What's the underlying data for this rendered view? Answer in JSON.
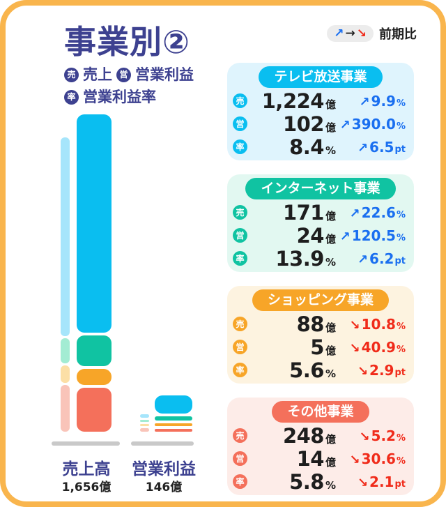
{
  "title": "事業別②",
  "legend": {
    "items": [
      {
        "badge": "売",
        "label": "売上"
      },
      {
        "badge": "営",
        "label": "営業利益"
      },
      {
        "badge": "率",
        "label": "営業利益率"
      }
    ]
  },
  "comparison_legend": {
    "up_arrow": "↗",
    "right_arrow": "→",
    "down_arrow": "↘",
    "label": "前期比"
  },
  "colors": {
    "frame_border": "#f9b54d",
    "navy": "#3d4190",
    "up_blue": "#1a6ff0",
    "down_red": "#f02b1a",
    "baseline_gray": "#c9c9c9",
    "segments": [
      "#0abef0",
      "#10c3a2",
      "#f7a528",
      "#f4705b"
    ],
    "segments_light": [
      "#a6e5fb",
      "#a3ecd3",
      "#fcdfa6",
      "#f9c4b9"
    ]
  },
  "chart_data": {
    "type": "bar",
    "subtype": "stacked, current period with lighter previous-period shadow bar",
    "unit": "億",
    "segment_names": [
      "テレビ放送事業",
      "インターネット事業",
      "ショッピング事業",
      "その他事業"
    ],
    "groups": [
      {
        "name": "売上高",
        "total": 1656,
        "total_label": "1,656億",
        "values": [
          1224,
          171,
          88,
          248
        ],
        "prev_values": [
          1114,
          140,
          99,
          262
        ]
      },
      {
        "name": "営業利益",
        "total": 146,
        "total_label": "146億",
        "values": [
          102,
          24,
          5,
          14
        ],
        "prev_values": [
          21,
          11,
          8,
          20
        ]
      }
    ]
  },
  "cards": [
    {
      "title": "テレビ放送事業",
      "color": "#0abef0",
      "bg": "#dff4fd",
      "rows": [
        {
          "badge": "売",
          "value": "1,224",
          "unit": "億",
          "direction": "up",
          "change": "9.9",
          "suffix": "%"
        },
        {
          "badge": "営",
          "value": "102",
          "unit": "億",
          "direction": "up",
          "change": "390.0",
          "suffix": "%"
        },
        {
          "badge": "率",
          "value": "8.4",
          "unit": "%",
          "direction": "up",
          "change": "6.5",
          "suffix": "pt"
        }
      ]
    },
    {
      "title": "インターネット事業",
      "color": "#10c3a2",
      "bg": "#e2f8f1",
      "rows": [
        {
          "badge": "売",
          "value": "171",
          "unit": "億",
          "direction": "up",
          "change": "22.6",
          "suffix": "%"
        },
        {
          "badge": "営",
          "value": "24",
          "unit": "億",
          "direction": "up",
          "change": "120.5",
          "suffix": "%"
        },
        {
          "badge": "率",
          "value": "13.9",
          "unit": "%",
          "direction": "up",
          "change": "6.2",
          "suffix": "pt"
        }
      ]
    },
    {
      "title": "ショッピング事業",
      "color": "#f7a528",
      "bg": "#fdf3e0",
      "rows": [
        {
          "badge": "売",
          "value": "88",
          "unit": "億",
          "direction": "down",
          "change": "10.8",
          "suffix": "%"
        },
        {
          "badge": "営",
          "value": "5",
          "unit": "億",
          "direction": "down",
          "change": "40.9",
          "suffix": "%"
        },
        {
          "badge": "率",
          "value": "5.6",
          "unit": "%",
          "direction": "down",
          "change": "2.9",
          "suffix": "pt"
        }
      ]
    },
    {
      "title": "その他事業",
      "color": "#f4705b",
      "bg": "#fdece8",
      "rows": [
        {
          "badge": "売",
          "value": "248",
          "unit": "億",
          "direction": "down",
          "change": "5.2",
          "suffix": "%"
        },
        {
          "badge": "営",
          "value": "14",
          "unit": "億",
          "direction": "down",
          "change": "30.6",
          "suffix": "%"
        },
        {
          "badge": "率",
          "value": "5.8",
          "unit": "%",
          "direction": "down",
          "change": "2.1",
          "suffix": "pt"
        }
      ]
    }
  ]
}
